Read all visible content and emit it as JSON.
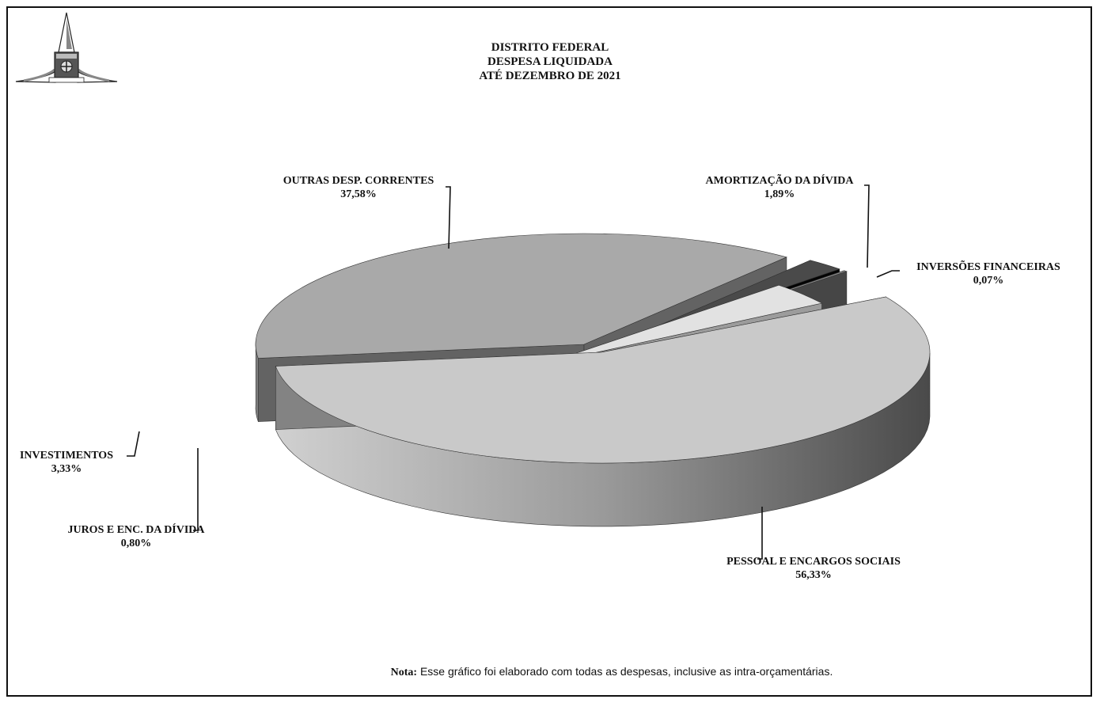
{
  "header": {
    "title_lines": [
      "DISTRITO FEDERAL",
      "DESPESA LIQUIDADA",
      "ATÉ  DEZEMBRO  DE 2021"
    ],
    "logo_icon": "brasilia-coat-of-arms-icon"
  },
  "chart_data": {
    "type": "pie",
    "style": "3d-exploded",
    "title": "DISTRITO FEDERAL / DESPESA LIQUIDADA / ATÉ  DEZEMBRO  DE 2021",
    "labels": [
      {
        "name": "PESSOAL E ENCARGOS SOCIAIS",
        "value_text": "56,33%"
      },
      {
        "name": "OUTRAS DESP. CORRENTES",
        "value_text": "37,58%"
      },
      {
        "name": "AMORTIZAÇÃO DA DÍVIDA",
        "value_text": "1,89%"
      },
      {
        "name": "INVERSÕES FINANCEIRAS",
        "value_text": "0,07%"
      },
      {
        "name": "INVESTIMENTOS",
        "value_text": "3,33%"
      },
      {
        "name": "JUROS E ENC. DA DÍVIDA",
        "value_text": "0,80%"
      }
    ],
    "values": [
      56.33,
      37.58,
      1.89,
      0.07,
      3.33,
      0.8
    ],
    "colors": [
      "#c9c9c9",
      "#a9a9a9",
      "#4a4a4a",
      "#8c8c8c",
      "#e2e2e2",
      "#1e1e1e"
    ]
  },
  "footer": {
    "note_label": "Nota:",
    "note_text": " Esse gráfico foi elaborado com todas as despesas, inclusive as intra-orçamentárias."
  }
}
